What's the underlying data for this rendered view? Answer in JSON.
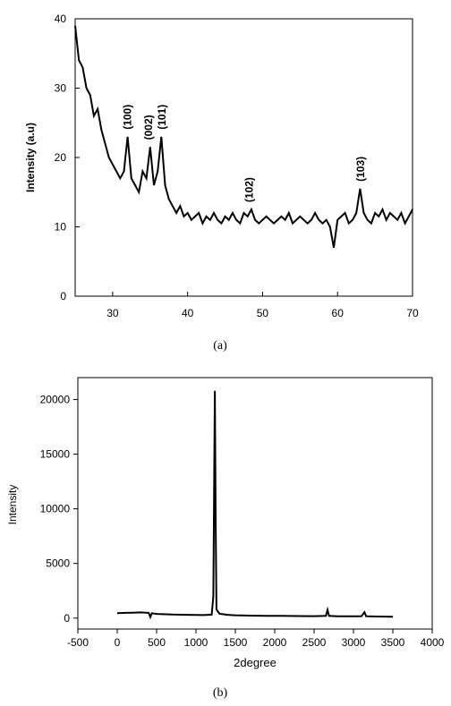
{
  "chart_data": [
    {
      "type": "line",
      "caption": "(a)",
      "xlabel": "",
      "ylabel": "Intensity (a.u)",
      "xlim": [
        25,
        70
      ],
      "ylim": [
        0,
        40
      ],
      "xticks": [
        30,
        40,
        50,
        60,
        70
      ],
      "yticks": [
        0,
        10,
        20,
        30,
        40
      ],
      "x": [
        25,
        25.5,
        26,
        26.5,
        27,
        27.5,
        28,
        28.5,
        29,
        29.5,
        30,
        30.5,
        31,
        31.5,
        32,
        32.5,
        33,
        33.5,
        34,
        34.5,
        35,
        35.5,
        36,
        36.5,
        37,
        37.5,
        38,
        38.5,
        39,
        39.5,
        40,
        40.5,
        41,
        41.5,
        42,
        42.5,
        43,
        43.5,
        44,
        44.5,
        45,
        45.5,
        46,
        46.5,
        47,
        47.5,
        48,
        48.5,
        49,
        49.5,
        50,
        50.5,
        51,
        51.5,
        52,
        52.5,
        53,
        53.5,
        54,
        54.5,
        55,
        55.5,
        56,
        56.5,
        57,
        57.5,
        58,
        58.5,
        59,
        59.5,
        60,
        60.5,
        61,
        61.5,
        62,
        62.5,
        63,
        63.5,
        64,
        64.5,
        65,
        65.5,
        66,
        66.5,
        67,
        67.5,
        68,
        68.5,
        69,
        69.5,
        70
      ],
      "y": [
        39,
        34,
        33,
        30,
        29,
        26,
        27,
        24,
        22,
        20,
        19,
        18,
        17,
        18,
        23,
        17,
        16,
        15,
        18,
        17,
        21.5,
        16,
        18,
        23,
        16,
        14,
        13,
        12,
        13,
        11.5,
        12,
        11,
        11.5,
        12,
        10.5,
        11.5,
        11,
        12,
        11,
        10.5,
        11.5,
        11,
        12,
        11,
        10.5,
        12,
        11.5,
        12.5,
        11,
        10.5,
        11,
        11.5,
        11,
        10.5,
        11,
        11.5,
        11,
        12,
        10.5,
        11,
        11.5,
        11,
        10.5,
        11,
        12,
        11,
        10.5,
        11,
        10,
        7,
        11,
        11.5,
        12,
        10.5,
        11,
        12,
        15.5,
        12,
        11,
        10.5,
        12,
        11.5,
        12.5,
        11,
        12,
        11.5,
        11,
        12,
        10.5,
        11.5,
        12.5
      ],
      "peak_labels": [
        {
          "label": "(100)",
          "x": 32,
          "y": 23
        },
        {
          "label": "(002)",
          "x": 34.8,
          "y": 21.5
        },
        {
          "label": "(101)",
          "x": 36.6,
          "y": 23
        },
        {
          "label": "(102)",
          "x": 48.2,
          "y": 12.5
        },
        {
          "label": "(103)",
          "x": 63.1,
          "y": 15.5
        }
      ]
    },
    {
      "type": "line",
      "caption": "(b)",
      "xlabel": "2degree",
      "ylabel": "Intensity",
      "xlim": [
        -500,
        4000
      ],
      "ylim": [
        -1000,
        22000
      ],
      "xticks": [
        -500,
        0,
        500,
        1000,
        1500,
        2000,
        2500,
        3000,
        3500,
        4000
      ],
      "yticks": [
        0,
        5000,
        10000,
        15000,
        20000
      ],
      "x": [
        0,
        100,
        200,
        300,
        400,
        420,
        440,
        500,
        700,
        900,
        1100,
        1200,
        1220,
        1240,
        1250,
        1260,
        1280,
        1300,
        1400,
        1500,
        1700,
        1900,
        2100,
        2300,
        2500,
        2650,
        2670,
        2690,
        2800,
        3000,
        3100,
        3140,
        3160,
        3180,
        3300,
        3500
      ],
      "y": [
        450,
        480,
        500,
        520,
        480,
        100,
        450,
        380,
        330,
        300,
        280,
        320,
        2000,
        20800,
        9000,
        800,
        600,
        400,
        300,
        260,
        230,
        210,
        200,
        190,
        180,
        200,
        750,
        200,
        170,
        160,
        160,
        550,
        180,
        160,
        150,
        120
      ]
    }
  ]
}
